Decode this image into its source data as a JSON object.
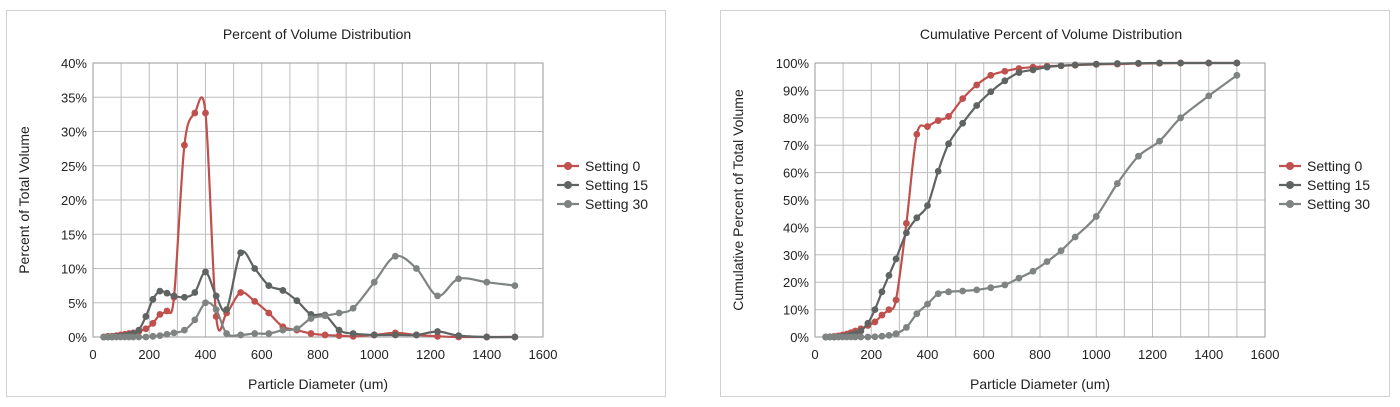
{
  "charts": [
    {
      "type": "line",
      "title": "Percent of Volume Distribution",
      "xlabel": "Particle Diameter (um)",
      "ylabel": "Percent of Total Volume",
      "xlim": [
        0,
        1600
      ],
      "ylim": [
        0,
        40
      ],
      "x_ticks": [
        "0",
        "200",
        "400",
        "600",
        "800",
        "1000",
        "1200",
        "1400",
        "1600"
      ],
      "y_ticks": [
        "0%",
        "5%",
        "10%",
        "15%",
        "20%",
        "25%",
        "30%",
        "35%",
        "40%"
      ],
      "grid": true,
      "legend_position": "right",
      "series": [
        {
          "name": "Setting 0",
          "color": "#c0504d",
          "points": [
            [
              38,
              0
            ],
            [
              53,
              0.1
            ],
            [
              68,
              0.1
            ],
            [
              83,
              0.2
            ],
            [
              98,
              0.3
            ],
            [
              113,
              0.4
            ],
            [
              128,
              0.5
            ],
            [
              143,
              0.6
            ],
            [
              163,
              0.8
            ],
            [
              188,
              1.2
            ],
            [
              213,
              2
            ],
            [
              238,
              3.3
            ],
            [
              263,
              3.8
            ],
            [
              288,
              5.8
            ],
            [
              325,
              28
            ],
            [
              362,
              32.7
            ],
            [
              400,
              32.7
            ],
            [
              438,
              3
            ],
            [
              475,
              3.5
            ],
            [
              525,
              6.5
            ],
            [
              575,
              5.2
            ],
            [
              625,
              3.5
            ],
            [
              675,
              1.5
            ],
            [
              725,
              1
            ],
            [
              775,
              0.5
            ],
            [
              825,
              0.3
            ],
            [
              875,
              0.2
            ],
            [
              925,
              0.1
            ],
            [
              1000,
              0.3
            ],
            [
              1075,
              0.6
            ],
            [
              1150,
              0.3
            ],
            [
              1225,
              0.1
            ],
            [
              1300,
              0
            ],
            [
              1400,
              0
            ],
            [
              1500,
              0
            ]
          ]
        },
        {
          "name": "Setting 15",
          "color": "#5f6462",
          "points": [
            [
              38,
              0
            ],
            [
              53,
              0
            ],
            [
              68,
              0
            ],
            [
              83,
              0.1
            ],
            [
              98,
              0.1
            ],
            [
              113,
              0.2
            ],
            [
              128,
              0.3
            ],
            [
              143,
              0.5
            ],
            [
              163,
              1
            ],
            [
              188,
              3
            ],
            [
              213,
              5.5
            ],
            [
              238,
              6.7
            ],
            [
              263,
              6.4
            ],
            [
              288,
              6
            ],
            [
              325,
              5.8
            ],
            [
              362,
              6.5
            ],
            [
              400,
              9.5
            ],
            [
              438,
              6
            ],
            [
              475,
              4
            ],
            [
              525,
              12.3
            ],
            [
              575,
              10
            ],
            [
              625,
              7.5
            ],
            [
              675,
              6.8
            ],
            [
              725,
              5.3
            ],
            [
              775,
              3.3
            ],
            [
              825,
              3.2
            ],
            [
              875,
              1
            ],
            [
              925,
              0.5
            ],
            [
              1000,
              0.3
            ],
            [
              1075,
              0.3
            ],
            [
              1150,
              0.3
            ],
            [
              1225,
              0.8
            ],
            [
              1300,
              0.2
            ],
            [
              1400,
              0
            ],
            [
              1500,
              0
            ]
          ]
        },
        {
          "name": "Setting 30",
          "color": "#7f8482",
          "points": [
            [
              38,
              0
            ],
            [
              53,
              0
            ],
            [
              68,
              0
            ],
            [
              83,
              0
            ],
            [
              98,
              0
            ],
            [
              113,
              0
            ],
            [
              128,
              0
            ],
            [
              143,
              0
            ],
            [
              163,
              0
            ],
            [
              188,
              0
            ],
            [
              213,
              0.1
            ],
            [
              238,
              0.2
            ],
            [
              263,
              0.4
            ],
            [
              288,
              0.6
            ],
            [
              325,
              1
            ],
            [
              362,
              2.5
            ],
            [
              400,
              5
            ],
            [
              438,
              4
            ],
            [
              475,
              0.5
            ],
            [
              525,
              0.3
            ],
            [
              575,
              0.5
            ],
            [
              625,
              0.5
            ],
            [
              675,
              1
            ],
            [
              725,
              1.2
            ],
            [
              775,
              2.7
            ],
            [
              825,
              3.1
            ],
            [
              875,
              3.5
            ],
            [
              925,
              4.2
            ],
            [
              1000,
              8
            ],
            [
              1075,
              11.8
            ],
            [
              1150,
              10
            ],
            [
              1225,
              6
            ],
            [
              1300,
              8.5
            ],
            [
              1400,
              8
            ],
            [
              1500,
              7.5
            ]
          ]
        }
      ]
    },
    {
      "type": "line",
      "title": "Cumulative Percent of Volume Distribution",
      "xlabel": "Particle Diameter (um)",
      "ylabel": "Cumulative Percent of Total Volume",
      "xlim": [
        0,
        1600
      ],
      "ylim": [
        0,
        100
      ],
      "x_ticks": [
        "0",
        "200",
        "400",
        "600",
        "800",
        "1000",
        "1200",
        "1400",
        "1600"
      ],
      "y_ticks": [
        "0%",
        "10%",
        "20%",
        "30%",
        "40%",
        "50%",
        "60%",
        "70%",
        "80%",
        "90%",
        "100%"
      ],
      "grid": true,
      "legend_position": "right",
      "series": [
        {
          "name": "Setting 0",
          "color": "#c0504d",
          "points": [
            [
              38,
              0
            ],
            [
              53,
              0.1
            ],
            [
              68,
              0.2
            ],
            [
              83,
              0.4
            ],
            [
              98,
              0.7
            ],
            [
              113,
              1.1
            ],
            [
              128,
              1.6
            ],
            [
              143,
              2.2
            ],
            [
              163,
              3
            ],
            [
              188,
              4.2
            ],
            [
              213,
              5.5
            ],
            [
              238,
              8
            ],
            [
              263,
              10
            ],
            [
              288,
              13.5
            ],
            [
              325,
              41.5
            ],
            [
              362,
              74
            ],
            [
              400,
              76.8
            ],
            [
              438,
              79
            ],
            [
              475,
              80.5
            ],
            [
              525,
              87
            ],
            [
              575,
              92
            ],
            [
              625,
              95.5
            ],
            [
              675,
              97
            ],
            [
              725,
              98
            ],
            [
              775,
              98.5
            ],
            [
              825,
              98.8
            ],
            [
              875,
              99
            ],
            [
              925,
              99.2
            ],
            [
              1000,
              99.5
            ],
            [
              1075,
              99.6
            ],
            [
              1150,
              99.8
            ],
            [
              1225,
              99.9
            ],
            [
              1300,
              100
            ],
            [
              1400,
              100
            ],
            [
              1500,
              100
            ]
          ]
        },
        {
          "name": "Setting 15",
          "color": "#5f6462",
          "points": [
            [
              38,
              0
            ],
            [
              53,
              0
            ],
            [
              68,
              0
            ],
            [
              83,
              0.1
            ],
            [
              98,
              0.2
            ],
            [
              113,
              0.4
            ],
            [
              128,
              0.7
            ],
            [
              143,
              1.2
            ],
            [
              163,
              2.2
            ],
            [
              188,
              5
            ],
            [
              213,
              10
            ],
            [
              238,
              16.5
            ],
            [
              263,
              22.5
            ],
            [
              288,
              28.5
            ],
            [
              325,
              38
            ],
            [
              362,
              43.5
            ],
            [
              400,
              48
            ],
            [
              438,
              60.5
            ],
            [
              475,
              70.5
            ],
            [
              525,
              78
            ],
            [
              575,
              84.5
            ],
            [
              625,
              89.5
            ],
            [
              675,
              93.5
            ],
            [
              725,
              96.5
            ],
            [
              775,
              97.5
            ],
            [
              825,
              98.5
            ],
            [
              875,
              99
            ],
            [
              925,
              99.3
            ],
            [
              1000,
              99.6
            ],
            [
              1075,
              99.8
            ],
            [
              1150,
              99.9
            ],
            [
              1225,
              100
            ],
            [
              1300,
              100
            ],
            [
              1400,
              100
            ],
            [
              1500,
              100
            ]
          ]
        },
        {
          "name": "Setting 30",
          "color": "#7f8482",
          "points": [
            [
              38,
              0
            ],
            [
              53,
              0
            ],
            [
              68,
              0
            ],
            [
              83,
              0
            ],
            [
              98,
              0
            ],
            [
              113,
              0
            ],
            [
              128,
              0
            ],
            [
              143,
              0
            ],
            [
              163,
              0
            ],
            [
              188,
              0
            ],
            [
              213,
              0.1
            ],
            [
              238,
              0.3
            ],
            [
              263,
              0.6
            ],
            [
              288,
              1.2
            ],
            [
              325,
              3.5
            ],
            [
              362,
              8.5
            ],
            [
              400,
              12
            ],
            [
              438,
              15.8
            ],
            [
              475,
              16.5
            ],
            [
              525,
              16.8
            ],
            [
              575,
              17.2
            ],
            [
              625,
              18
            ],
            [
              675,
              19
            ],
            [
              725,
              21.5
            ],
            [
              775,
              24
            ],
            [
              825,
              27.5
            ],
            [
              875,
              31.5
            ],
            [
              925,
              36.5
            ],
            [
              1000,
              44
            ],
            [
              1075,
              56
            ],
            [
              1150,
              66
            ],
            [
              1225,
              71.5
            ],
            [
              1300,
              80
            ],
            [
              1400,
              88
            ],
            [
              1500,
              95.5
            ]
          ]
        }
      ]
    }
  ]
}
